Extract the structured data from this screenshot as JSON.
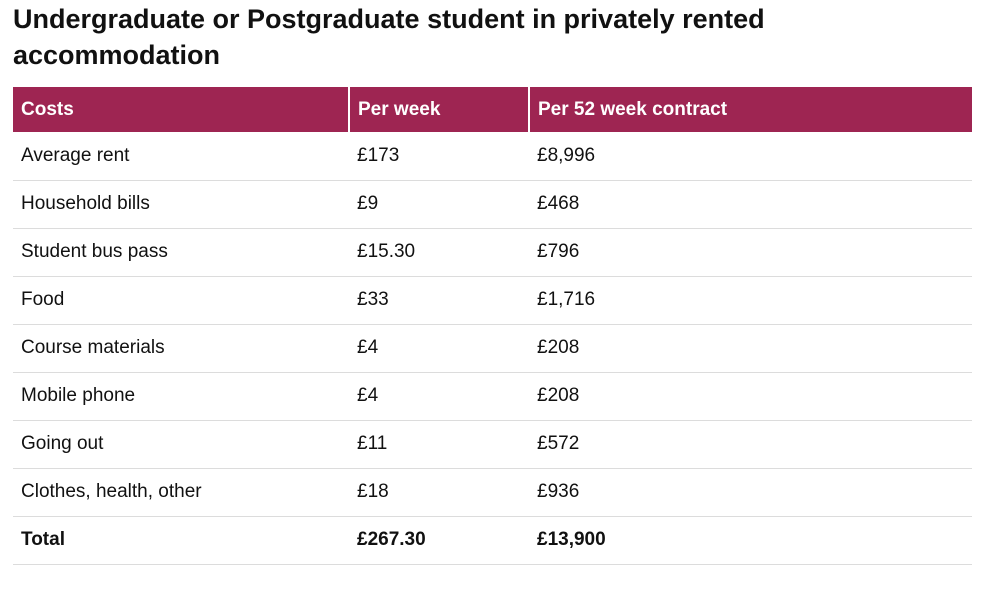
{
  "title": "Undergraduate or Postgraduate student in privately rented accommodation",
  "table": {
    "headers": [
      "Costs",
      "Per week",
      "Per 52 week contract"
    ],
    "rows": [
      [
        "Average rent",
        "£173",
        "£8,996"
      ],
      [
        "Household bills",
        "£9",
        "£468"
      ],
      [
        "Student bus pass",
        "£15.30",
        "£796"
      ],
      [
        "Food",
        "£33",
        "£1,716"
      ],
      [
        "Course materials",
        "£4",
        "£208"
      ],
      [
        "Mobile phone",
        "£4",
        "£208"
      ],
      [
        "Going out",
        "£11",
        "£572"
      ],
      [
        "Clothes, health, other",
        "£18",
        "£936"
      ]
    ],
    "total": [
      "Total",
      "£267.30",
      "£13,900"
    ]
  },
  "colors": {
    "header_background": "#9e2552",
    "header_text": "#ffffff",
    "row_divider": "#dcdcdc"
  }
}
